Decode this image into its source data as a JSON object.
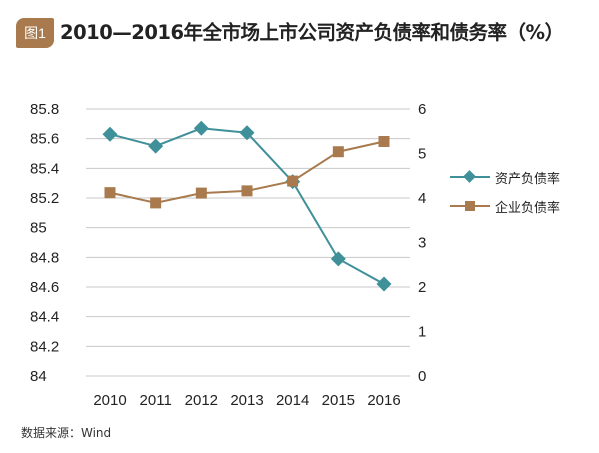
{
  "header": {
    "badge": "图1",
    "title": "2010—2016年全市场上市公司资产负债率和债务率（%）"
  },
  "footer": {
    "source": "数据来源：Wind"
  },
  "colors": {
    "badge": "#a87a4e",
    "series_teal": "#3f9099",
    "series_brown": "#a87a4e",
    "grid": "#c8c8c8"
  },
  "chart_data": {
    "type": "line",
    "title": "",
    "xlabel": "",
    "ylabel_left": "",
    "ylabel_right": "",
    "categories": [
      "2010",
      "2011",
      "2012",
      "2013",
      "2014",
      "2015",
      "2016"
    ],
    "y_left": {
      "range": [
        84,
        85.8
      ],
      "ticks": [
        "85.8",
        "85.6",
        "85.4",
        "85.2",
        "85",
        "84.8",
        "84.6",
        "84.4",
        "84.2",
        "84"
      ]
    },
    "y_right": {
      "range": [
        0,
        6
      ],
      "ticks": [
        "6",
        "5",
        "4",
        "3",
        "2",
        "1",
        "0"
      ]
    },
    "grid": true,
    "legend_position": "right",
    "series": [
      {
        "name": "资产负债率",
        "axis": "left",
        "marker": "diamond",
        "color": "#3f9099",
        "values": [
          85.63,
          85.55,
          85.67,
          85.64,
          85.31,
          84.79,
          84.62
        ]
      },
      {
        "name": "企业负债率",
        "axis": "right",
        "marker": "square",
        "color": "#a87a4e",
        "values": [
          4.12,
          3.89,
          4.11,
          4.16,
          4.38,
          5.04,
          5.27
        ]
      }
    ]
  }
}
